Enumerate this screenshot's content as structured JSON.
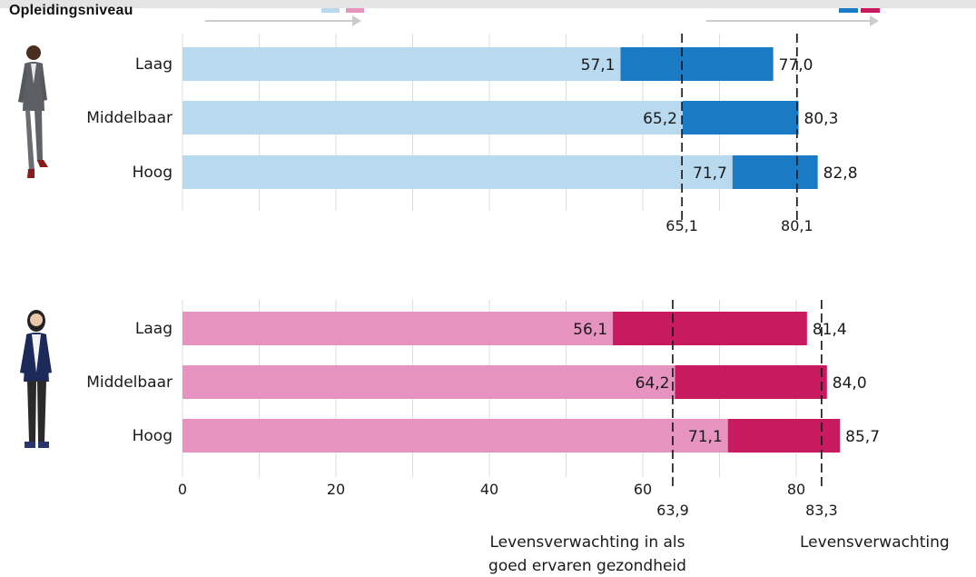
{
  "heading": "Opleidingsniveau",
  "colors": {
    "man_healthy": "#b8d9ee",
    "man_total": "#1a7ac4",
    "woman_healthy": "#e693c0",
    "woman_total": "#c81b5f",
    "grid": "#dddddd",
    "arrow": "#cccccc"
  },
  "icons": {
    "man": "man-figure-icon",
    "woman": "woman-figure-icon"
  },
  "chart_data": [
    {
      "type": "bar",
      "orientation": "horizontal",
      "group": "man",
      "categories": [
        "Laag",
        "Middelbaar",
        "Hoog"
      ],
      "series": [
        {
          "values": [
            57.1,
            65.2,
            71.7
          ],
          "labels": [
            "57,1",
            "65,2",
            "71,7"
          ]
        },
        {
          "values": [
            77.0,
            80.3,
            82.8
          ],
          "labels": [
            "77,0",
            "80,3",
            "82,8"
          ]
        }
      ],
      "reference_lines": [
        {
          "value": 65.1,
          "label": "65,1"
        },
        {
          "value": 80.1,
          "label": "80,1"
        }
      ],
      "xlim": [
        0,
        88
      ],
      "grid": true
    },
    {
      "type": "bar",
      "orientation": "horizontal",
      "group": "woman",
      "categories": [
        "Laag",
        "Middelbaar",
        "Hoog"
      ],
      "series": [
        {
          "values": [
            56.1,
            64.2,
            71.1
          ],
          "labels": [
            "56,1",
            "64,2",
            "71,1"
          ]
        },
        {
          "values": [
            81.4,
            84.0,
            85.7
          ],
          "labels": [
            "81,4",
            "84,0",
            "85,7"
          ]
        }
      ],
      "reference_lines": [
        {
          "value": 63.9,
          "label": "63,9"
        },
        {
          "value": 83.3,
          "label": "83,3"
        }
      ],
      "xlim": [
        0,
        88
      ],
      "x_ticks": [
        {
          "value": 0,
          "label": "0"
        },
        {
          "value": 20,
          "label": "20"
        },
        {
          "value": 40,
          "label": "40"
        },
        {
          "value": 60,
          "label": "60"
        },
        {
          "value": 80,
          "label": "80"
        }
      ],
      "grid": true
    }
  ],
  "annotations": {
    "healthy_line1": "Levensverwachting in als",
    "healthy_line2": "goed ervaren gezondheid",
    "total": "Levensverwachting"
  }
}
